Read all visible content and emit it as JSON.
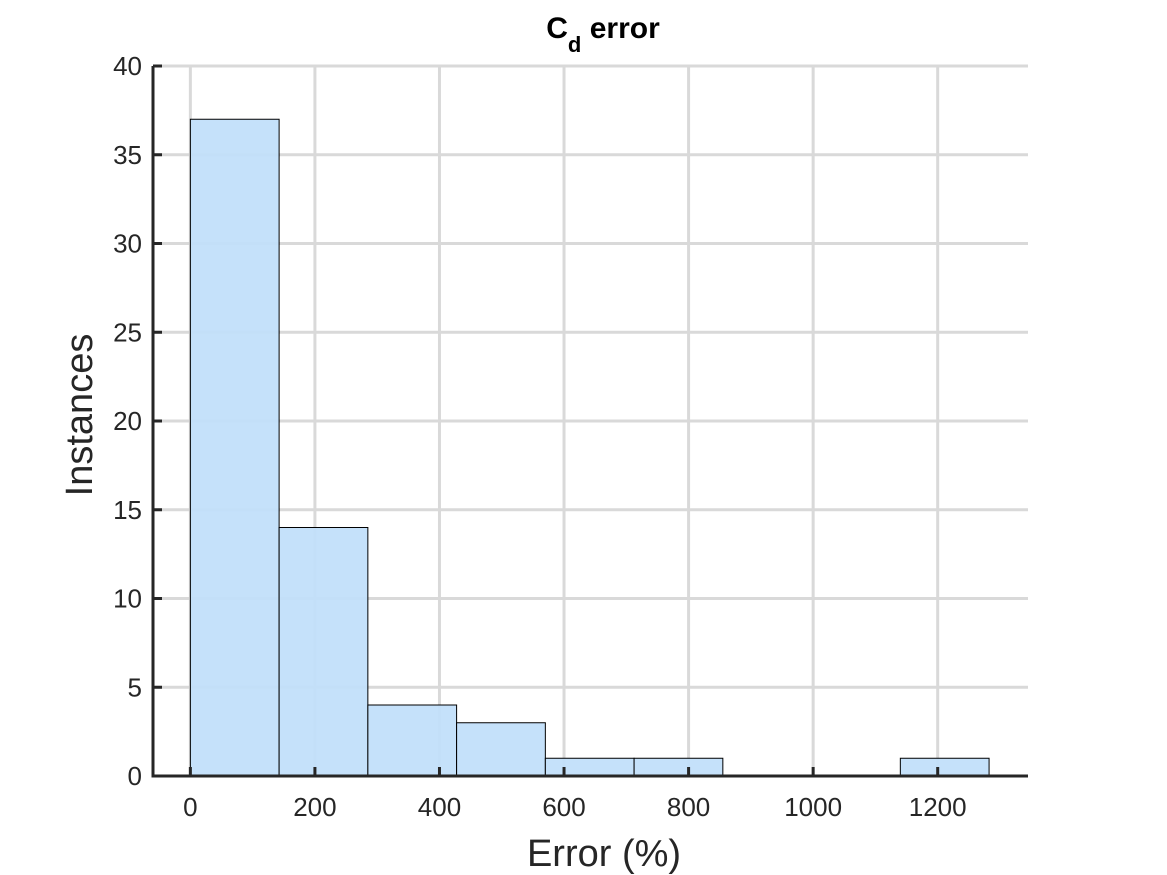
{
  "chart_data": {
    "type": "bar",
    "histogram": true,
    "title_main": "C",
    "title_subscript": "d",
    "title_rest": " error",
    "xlabel": "Error (%)",
    "ylabel": "Instances",
    "bin_edges": [
      0,
      142.5,
      285,
      427.5,
      570,
      712.5,
      855,
      997.5,
      1140,
      1282.5
    ],
    "values": [
      37,
      14,
      4,
      3,
      1,
      1,
      0,
      0,
      1
    ],
    "xlim": [
      -60,
      1345
    ],
    "ylim": [
      0,
      40
    ],
    "xticks": [
      0,
      200,
      400,
      600,
      800,
      1000,
      1200
    ],
    "xtick_labels": [
      "0",
      "200",
      "400",
      "600",
      "800",
      "1000",
      "1200"
    ],
    "yticks": [
      0,
      5,
      10,
      15,
      20,
      25,
      30,
      35,
      40
    ],
    "ytick_labels": [
      "0",
      "5",
      "10",
      "15",
      "20",
      "25",
      "30",
      "35",
      "40"
    ],
    "grid": true,
    "bar_color": "#c2dffa",
    "bar_edge_color": "#000000"
  }
}
